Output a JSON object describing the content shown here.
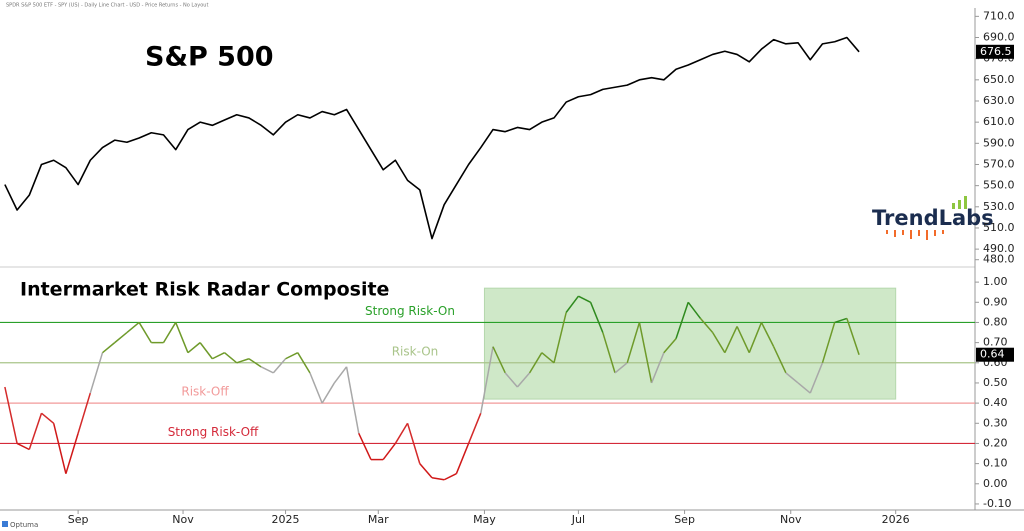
{
  "header": "SPDR S&P 500 ETF - SPY (US) - Daily Line Chart - USD - Price Returns - No Layout",
  "footer": "Optuma",
  "logo": "TrendLabs",
  "chart_data": [
    {
      "type": "line",
      "title": "S&P 500",
      "color": "#000000",
      "xlim": [
        -0.4,
        79.5
      ],
      "ylim": [
        475,
        716
      ],
      "yticks": [
        {
          "value": 710,
          "label": "710.0"
        },
        {
          "value": 690,
          "label": "690.0"
        },
        {
          "value": 670,
          "label": "670.0"
        },
        {
          "value": 650,
          "label": "650.0"
        },
        {
          "value": 630,
          "label": "630.0"
        },
        {
          "value": 610,
          "label": "610.0"
        },
        {
          "value": 590,
          "label": "590.0"
        },
        {
          "value": 570,
          "label": "570.0"
        },
        {
          "value": 550,
          "label": "550.0"
        },
        {
          "value": 530,
          "label": "530.0"
        },
        {
          "value": 510,
          "label": "510.0"
        },
        {
          "value": 490,
          "label": "490.0"
        },
        {
          "value": 480,
          "label": "480.0"
        }
      ],
      "last_value_label": "676.5",
      "values": [
        551,
        527,
        541,
        570,
        574,
        567,
        551,
        574,
        586,
        593,
        591,
        595,
        600,
        598,
        584,
        603,
        610,
        607,
        612,
        617,
        614,
        607,
        598,
        610,
        617,
        614,
        620,
        617,
        622,
        603,
        584,
        565,
        574,
        555,
        546,
        500,
        532,
        551,
        570,
        586,
        603,
        601,
        605,
        603,
        610,
        614,
        629,
        634,
        636,
        641,
        643,
        645,
        650,
        652,
        650,
        660,
        664,
        669,
        674,
        677,
        674,
        667,
        679,
        688,
        684,
        685,
        669,
        684,
        686,
        690,
        676.5
      ]
    },
    {
      "type": "line",
      "title": "Intermarket Risk Radar Composite",
      "xlim": [
        -0.4,
        79.5
      ],
      "ylim": [
        -0.13,
        1.07
      ],
      "xticks": [
        {
          "value": 6.0,
          "label": "Sep"
        },
        {
          "value": 14.6,
          "label": "Nov"
        },
        {
          "value": 23.0,
          "label": "2025"
        },
        {
          "value": 30.6,
          "label": "Mar"
        },
        {
          "value": 39.3,
          "label": "May"
        },
        {
          "value": 47.0,
          "label": "Jul"
        },
        {
          "value": 55.7,
          "label": "Sep"
        },
        {
          "value": 64.4,
          "label": "Nov"
        },
        {
          "value": 73.0,
          "label": "2026"
        }
      ],
      "yticks": [
        {
          "value": 1,
          "label": "1.00"
        },
        {
          "value": 0.9,
          "label": "0.90"
        },
        {
          "value": 0.8,
          "label": "0.80"
        },
        {
          "value": 0.7,
          "label": "0.70"
        },
        {
          "value": 0.6,
          "label": "0.60"
        },
        {
          "value": 0.5,
          "label": "0.50"
        },
        {
          "value": 0.4,
          "label": "0.40"
        },
        {
          "value": 0.3,
          "label": "0.30"
        },
        {
          "value": 0.2,
          "label": "0.20"
        },
        {
          "value": 0.1,
          "label": "0.10"
        },
        {
          "value": 0,
          "label": "0.00"
        },
        {
          "value": -0.1,
          "label": "-0.10"
        }
      ],
      "last_value_label": "0.64",
      "levels": [
        {
          "name": "Strong Risk-On",
          "value": 0.8,
          "color": "#2aa02a"
        },
        {
          "name": "Risk-On",
          "value": 0.6,
          "color": "#a9c48a"
        },
        {
          "name": "Risk-Off",
          "value": 0.4,
          "color": "#f29a9a"
        },
        {
          "name": "Strong Risk-Off",
          "value": 0.2,
          "color": "#d42a3a"
        }
      ],
      "band_colors": [
        "#d01818",
        "#d42a2a",
        "#a8a8a8",
        "#6e9a2a",
        "#2f8a1e"
      ],
      "highlight": {
        "x": [
          39.3,
          73.0
        ],
        "y": [
          0.42,
          0.97
        ],
        "color": "#cfe8c8"
      },
      "values": [
        0.48,
        0.2,
        0.17,
        0.35,
        0.3,
        0.05,
        0.25,
        0.45,
        0.65,
        0.7,
        0.75,
        0.8,
        0.7,
        0.7,
        0.8,
        0.65,
        0.7,
        0.62,
        0.65,
        0.6,
        0.62,
        0.58,
        0.55,
        0.62,
        0.65,
        0.55,
        0.4,
        0.5,
        0.58,
        0.25,
        0.12,
        0.12,
        0.2,
        0.3,
        0.1,
        0.03,
        0.02,
        0.05,
        0.2,
        0.35,
        0.68,
        0.55,
        0.48,
        0.55,
        0.65,
        0.6,
        0.85,
        0.93,
        0.9,
        0.75,
        0.55,
        0.6,
        0.8,
        0.5,
        0.65,
        0.72,
        0.9,
        0.82,
        0.75,
        0.65,
        0.78,
        0.65,
        0.8,
        0.68,
        0.55,
        0.5,
        0.45,
        0.6,
        0.8,
        0.82,
        0.64
      ]
    }
  ]
}
